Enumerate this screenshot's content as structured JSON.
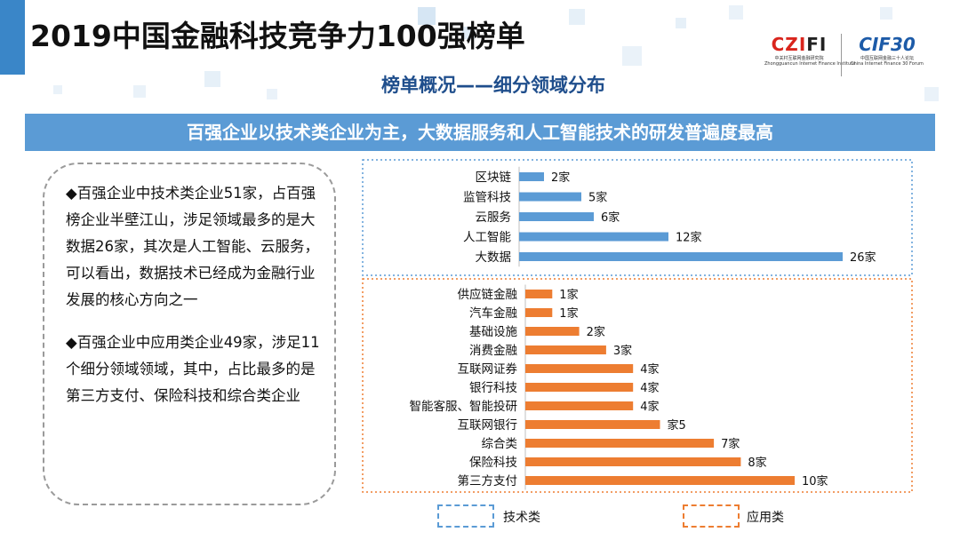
{
  "slide": {
    "title": "2019中国金融科技竞争力100强榜单",
    "subtitle": "榜单概况——细分领域分布",
    "banner": "百强企业以技术类企业为主，大数据服务和人工智能技术的研发普遍度最高",
    "logos": {
      "logo1_mark_a": "CZ",
      "logo1_mark_b": "I",
      "logo1_mark_c": "FI",
      "logo1_sub": "中关村互联网金融研究院",
      "logo1_sub2": "Zhongguancun Internet Finance Institute",
      "logo2_mark": "CIF30",
      "logo2_sub": "中国互联网金融三十人论坛",
      "logo2_sub2": "China Internet Finance 30 Forum"
    },
    "paragraphs": [
      "◆百强企业中技术类企业51家，占百强榜企业半壁江山，涉足领域最多的是大数据26家，其次是人工智能、云服务，可以看出，数据技术已经成为金融行业发展的核心方向之一",
      "◆百强企业中应用类企业49家，涉足11个细分领域领域，其中，占比最多的是第三方支付、保险科技和综合类企业"
    ],
    "colors": {
      "accent": "#5b9bd5",
      "orange": "#ed7d31",
      "title_blue": "#1f4e8c"
    }
  },
  "chart_data": [
    {
      "type": "bar",
      "orientation": "horizontal",
      "group": "技术类",
      "color": "#5b9bd5",
      "categories": [
        "区块链",
        "监管科技",
        "云服务",
        "人工智能",
        "大数据"
      ],
      "values": [
        2,
        5,
        6,
        12,
        26
      ],
      "data_labels": [
        "2家",
        "5家",
        "6家",
        "12家",
        "26家"
      ]
    },
    {
      "type": "bar",
      "orientation": "horizontal",
      "group": "应用类",
      "color": "#ed7d31",
      "categories": [
        "供应链金融",
        "汽车金融",
        "基础设施",
        "消费金融",
        "互联网证券",
        "银行科技",
        "智能客服、智能投研",
        "互联网银行",
        "综合类",
        "保险科技",
        "第三方支付"
      ],
      "values": [
        1,
        1,
        2,
        3,
        4,
        4,
        4,
        5,
        7,
        8,
        10
      ],
      "data_labels": [
        "1家",
        "1家",
        "2家",
        "3家",
        "4家",
        "4家",
        "4家",
        "家5",
        "7家",
        "8家",
        "10家"
      ]
    }
  ],
  "legend": [
    {
      "label": "技术类",
      "color": "#5b9bd5"
    },
    {
      "label": "应用类",
      "color": "#ed7d31"
    }
  ]
}
